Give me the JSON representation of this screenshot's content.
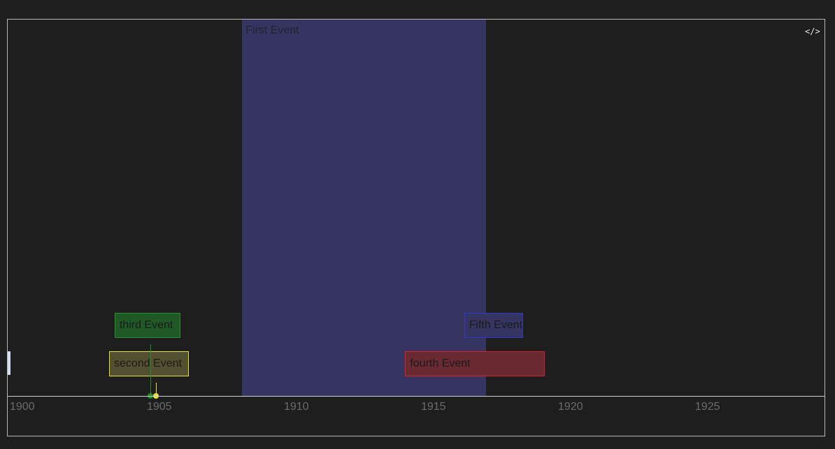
{
  "timeline": {
    "start_year": 1900,
    "end_year": 1929.85,
    "axis_ticks": [
      "1900",
      "1905",
      "1910",
      "1915",
      "1920",
      "1925"
    ],
    "code_button_icon": "code-icon",
    "code_button_glyph": "</>",
    "events": [
      {
        "id": "first",
        "label": "First Event",
        "type": "span",
        "start": 1908.55,
        "end": 1917.45,
        "color": "#363562"
      },
      {
        "id": "second",
        "label": "second Event",
        "type": "point",
        "at": 1905.4,
        "row": 1,
        "box_start": 1903.7,
        "box_end": 1906.6,
        "fill": "#525030",
        "border": "#e5e03a",
        "marker": "#e8e23a"
      },
      {
        "id": "third",
        "label": "third Event",
        "type": "point",
        "at": 1905.2,
        "row": 2,
        "box_start": 1903.9,
        "box_end": 1906.3,
        "fill": "#1f5a26",
        "border": "#2a8a34",
        "marker": "#1f8a2c"
      },
      {
        "id": "fourth",
        "label": "fourth Event",
        "type": "range",
        "start": 1914.5,
        "end": 1919.6,
        "row": 1,
        "fill": "#6b2a31",
        "border": "#d6232f"
      },
      {
        "id": "fifth",
        "label": "Fifth Event",
        "type": "range",
        "start": 1916.65,
        "end": 1918.8,
        "row": 2,
        "fill": "#363562",
        "border": "#2d39c4"
      }
    ]
  }
}
